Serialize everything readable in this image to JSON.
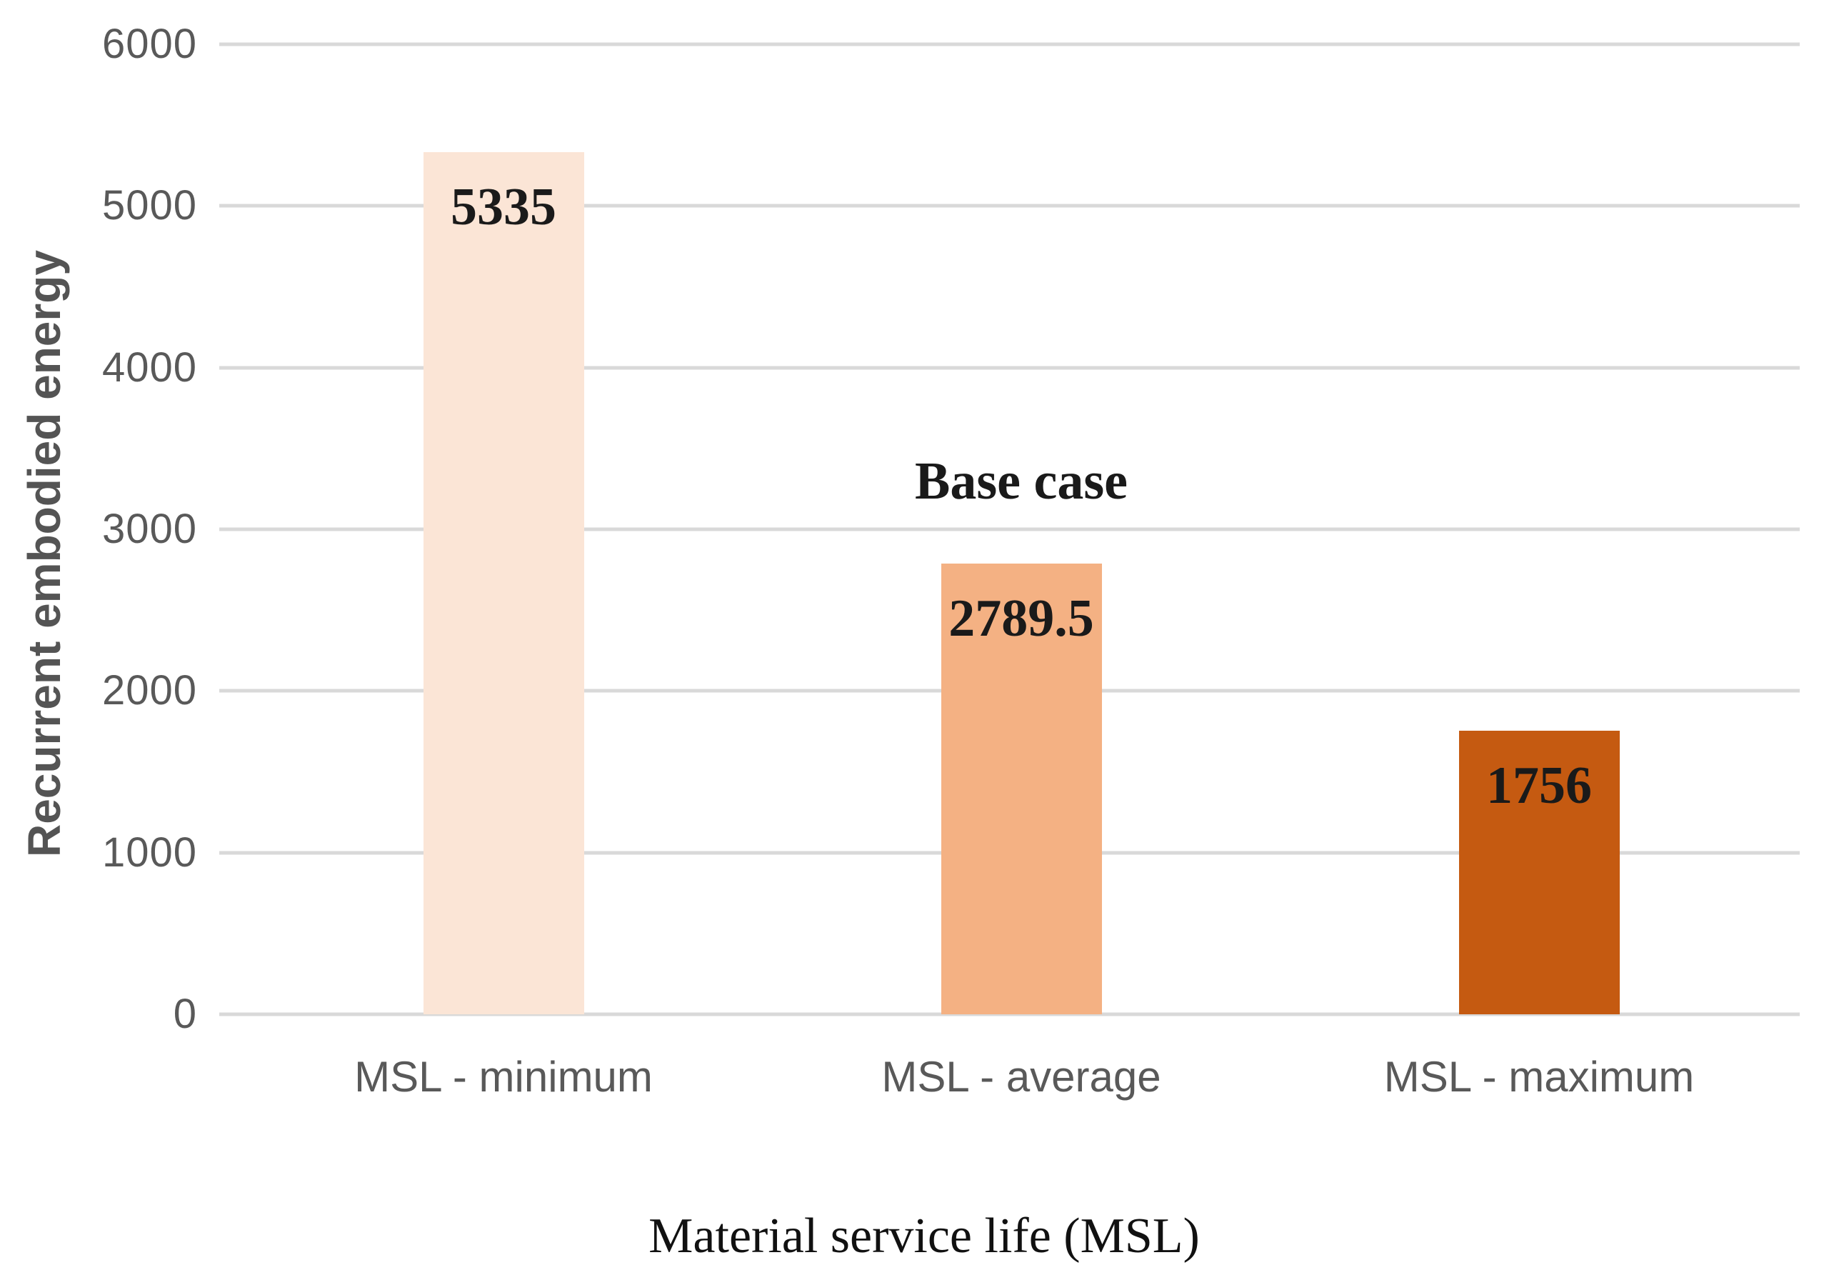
{
  "chart_data": {
    "type": "bar",
    "title": "",
    "categories": [
      "MSL - minimum",
      "MSL - average",
      "MSL - maximum"
    ],
    "values": [
      5335,
      2789.5,
      1756
    ],
    "value_labels": [
      "5335",
      "2789.5",
      "1756"
    ],
    "bar_colors": [
      "#FBE5D6",
      "#F4B183",
      "#C55A11"
    ],
    "annotation": {
      "text": "Base case",
      "target_index": 1
    },
    "xlabel": "Material service life (MSL)",
    "ylabel": "Recurrent embodied energy",
    "ylim": [
      0,
      6000
    ],
    "yticks": [
      0,
      1000,
      2000,
      3000,
      4000,
      5000,
      6000
    ],
    "grid": true,
    "gridline_color": "#D9D9D9",
    "tick_label_color": "#595959",
    "legend": "none"
  }
}
